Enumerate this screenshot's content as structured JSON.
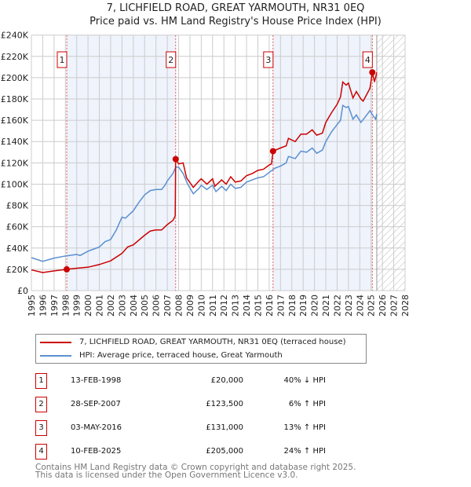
{
  "chart_data": {
    "type": "line",
    "title": "7, LICHFIELD ROAD, GREAT YARMOUTH, NR31 0EQ",
    "subtitle": "Price paid vs. HM Land Registry's House Price Index (HPI)",
    "xlim": [
      1995,
      2028
    ],
    "ylim": [
      0,
      240000
    ],
    "x_ticks": [
      "1995",
      "1996",
      "1997",
      "1998",
      "1999",
      "2000",
      "2001",
      "2002",
      "2003",
      "2004",
      "2005",
      "2006",
      "2007",
      "2008",
      "2009",
      "2010",
      "2011",
      "2012",
      "2013",
      "2014",
      "2015",
      "2016",
      "2017",
      "2018",
      "2019",
      "2020",
      "2021",
      "2022",
      "2023",
      "2024",
      "2025",
      "2026",
      "2027",
      "2028"
    ],
    "y_ticks": [
      "£0",
      "£20K",
      "£40K",
      "£60K",
      "£80K",
      "£100K",
      "£120K",
      "£140K",
      "£160K",
      "£180K",
      "£200K",
      "£220K",
      "£240K"
    ],
    "grid": true,
    "forecast_hatch_from": 2025.5,
    "shaded_periods": [
      [
        1998.12,
        2007.74
      ],
      [
        2016.34,
        2025.11
      ]
    ],
    "series": [
      {
        "name": "7, LICHFIELD ROAD, GREAT YARMOUTH, NR31 0EQ (terraced house)",
        "color": "#cc0000",
        "points": [
          [
            1995,
            19500
          ],
          [
            1996,
            17000
          ],
          [
            1997,
            18500
          ],
          [
            1998.12,
            20000
          ],
          [
            1999,
            21000
          ],
          [
            2000,
            22000
          ],
          [
            2001,
            24500
          ],
          [
            2002,
            28000
          ],
          [
            2003,
            35000
          ],
          [
            2003.5,
            41000
          ],
          [
            2004,
            43000
          ],
          [
            2005,
            52000
          ],
          [
            2005.5,
            56000
          ],
          [
            2006,
            57000
          ],
          [
            2006.5,
            57000
          ],
          [
            2007,
            62000
          ],
          [
            2007.5,
            66000
          ],
          [
            2007.7,
            70000
          ],
          [
            2007.74,
            123500
          ],
          [
            2008,
            119000
          ],
          [
            2008.4,
            120000
          ],
          [
            2008.7,
            106000
          ],
          [
            2009.3,
            97000
          ],
          [
            2009.8,
            103000
          ],
          [
            2010,
            105000
          ],
          [
            2010.5,
            100000
          ],
          [
            2011,
            105000
          ],
          [
            2011.2,
            98000
          ],
          [
            2011.8,
            104000
          ],
          [
            2012.2,
            100000
          ],
          [
            2012.6,
            107000
          ],
          [
            2013,
            102000
          ],
          [
            2013.5,
            103000
          ],
          [
            2014,
            108000
          ],
          [
            2014.5,
            110000
          ],
          [
            2015,
            113000
          ],
          [
            2015.5,
            114000
          ],
          [
            2016,
            118000
          ],
          [
            2016.2,
            119000
          ],
          [
            2016.34,
            131000
          ],
          [
            2017,
            134000
          ],
          [
            2017.5,
            136000
          ],
          [
            2017.7,
            143000
          ],
          [
            2018.3,
            140000
          ],
          [
            2018.8,
            147000
          ],
          [
            2019.3,
            147000
          ],
          [
            2019.8,
            151000
          ],
          [
            2020.2,
            146000
          ],
          [
            2020.7,
            148000
          ],
          [
            2021,
            158000
          ],
          [
            2021.5,
            167000
          ],
          [
            2022,
            175000
          ],
          [
            2022.3,
            182000
          ],
          [
            2022.5,
            196000
          ],
          [
            2022.8,
            193000
          ],
          [
            2023,
            195000
          ],
          [
            2023.4,
            181000
          ],
          [
            2023.7,
            187000
          ],
          [
            2024.1,
            180000
          ],
          [
            2024.3,
            178000
          ],
          [
            2024.6,
            184000
          ],
          [
            2024.9,
            190000
          ],
          [
            2025.11,
            205000
          ],
          [
            2025.3,
            196000
          ],
          [
            2025.5,
            205000
          ]
        ]
      },
      {
        "name": "HPI: Average price, terraced house, Great Yarmouth",
        "color": "#5b8fd0",
        "points": [
          [
            1995,
            31000
          ],
          [
            1996,
            27500
          ],
          [
            1997,
            30500
          ],
          [
            1998,
            32500
          ],
          [
            1999,
            34000
          ],
          [
            1999.3,
            33000
          ],
          [
            2000,
            37000
          ],
          [
            2000.5,
            39000
          ],
          [
            2001,
            41000
          ],
          [
            2001.5,
            46000
          ],
          [
            2002,
            48000
          ],
          [
            2002.5,
            57000
          ],
          [
            2003,
            69000
          ],
          [
            2003.3,
            68000
          ],
          [
            2004,
            75000
          ],
          [
            2004.5,
            83000
          ],
          [
            2005,
            90000
          ],
          [
            2005.5,
            94000
          ],
          [
            2006,
            95000
          ],
          [
            2006.5,
            95000
          ],
          [
            2006.8,
            99000
          ],
          [
            2007,
            103000
          ],
          [
            2007.5,
            110000
          ],
          [
            2007.75,
            116000
          ],
          [
            2008,
            116000
          ],
          [
            2008.4,
            110000
          ],
          [
            2008.8,
            100000
          ],
          [
            2009.3,
            91000
          ],
          [
            2009.8,
            96000
          ],
          [
            2010,
            99000
          ],
          [
            2010.5,
            95000
          ],
          [
            2011,
            99000
          ],
          [
            2011.3,
            93000
          ],
          [
            2011.8,
            98000
          ],
          [
            2012.2,
            94000
          ],
          [
            2012.6,
            100000
          ],
          [
            2013,
            96000
          ],
          [
            2013.5,
            97000
          ],
          [
            2014,
            102000
          ],
          [
            2014.5,
            104000
          ],
          [
            2015,
            106000
          ],
          [
            2015.5,
            107000
          ],
          [
            2016,
            111000
          ],
          [
            2016.5,
            115000
          ],
          [
            2017,
            117000
          ],
          [
            2017.5,
            120000
          ],
          [
            2017.7,
            126000
          ],
          [
            2018.3,
            124000
          ],
          [
            2018.8,
            131000
          ],
          [
            2019.3,
            130000
          ],
          [
            2019.8,
            134000
          ],
          [
            2020.2,
            129000
          ],
          [
            2020.7,
            132000
          ],
          [
            2021,
            140000
          ],
          [
            2021.5,
            149000
          ],
          [
            2022,
            156000
          ],
          [
            2022.3,
            160000
          ],
          [
            2022.5,
            174000
          ],
          [
            2022.8,
            172000
          ],
          [
            2023,
            173000
          ],
          [
            2023.4,
            161000
          ],
          [
            2023.7,
            165000
          ],
          [
            2024.1,
            158000
          ],
          [
            2024.4,
            162000
          ],
          [
            2024.9,
            169000
          ],
          [
            2025.2,
            164000
          ],
          [
            2025.4,
            161000
          ],
          [
            2025.5,
            166000
          ]
        ]
      }
    ],
    "sales": [
      {
        "label": "1",
        "date": "13-FEB-1998",
        "price": "£20,000",
        "hpi": "40% ↓ HPI",
        "x": 1998.12,
        "y": 20000
      },
      {
        "label": "2",
        "date": "28-SEP-2007",
        "price": "£123,500",
        "hpi": "6% ↑ HPI",
        "x": 2007.74,
        "y": 123500
      },
      {
        "label": "3",
        "date": "03-MAY-2016",
        "price": "£131,000",
        "hpi": "13% ↑ HPI",
        "x": 2016.34,
        "y": 131000
      },
      {
        "label": "4",
        "date": "10-FEB-2025",
        "price": "£205,000",
        "hpi": "24% ↑ HPI",
        "x": 2025.11,
        "y": 205000
      }
    ]
  },
  "legend": {
    "red": "7, LICHFIELD ROAD, GREAT YARMOUTH, NR31 0EQ (terraced house)",
    "blue": "HPI: Average price, terraced house, Great Yarmouth"
  },
  "footer": {
    "line1": "Contains HM Land Registry data © Crown copyright and database right 2025.",
    "line2": "This data is licensed under the Open Government Licence v3.0."
  }
}
